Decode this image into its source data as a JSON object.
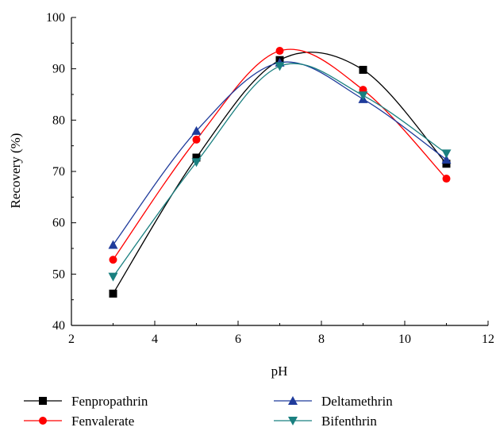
{
  "chart_data": {
    "type": "line",
    "xlabel": "pH",
    "ylabel": "Recovery (%)",
    "xlim": [
      2,
      12
    ],
    "ylim": [
      40,
      100
    ],
    "xticks": [
      2,
      4,
      6,
      8,
      10,
      12
    ],
    "yticks": [
      40,
      50,
      60,
      70,
      80,
      90,
      100
    ],
    "grid": false,
    "legend_position": "bottom",
    "x": [
      3,
      5,
      7,
      9,
      11
    ],
    "series": [
      {
        "name": "Fenpropathrin",
        "color": "#000000",
        "marker": "square",
        "values": [
          46.2,
          72.7,
          91.7,
          89.8,
          71.5
        ]
      },
      {
        "name": "Fenvalerate",
        "color": "#ff0000",
        "marker": "circle",
        "values": [
          52.8,
          76.2,
          93.5,
          85.9,
          68.6
        ]
      },
      {
        "name": "Deltamethrin",
        "color": "#1f3b9b",
        "marker": "triangle-up",
        "values": [
          55.7,
          77.9,
          91.2,
          84.1,
          72.3
        ]
      },
      {
        "name": "Bifenthrin",
        "color": "#1a8080",
        "marker": "triangle-down",
        "values": [
          49.5,
          71.8,
          90.5,
          84.8,
          73.5
        ]
      }
    ]
  }
}
